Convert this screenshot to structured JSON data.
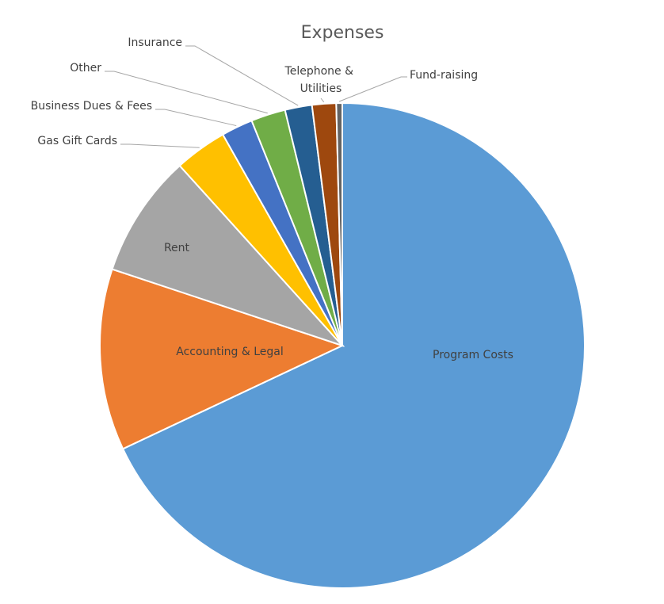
{
  "chart_data": {
    "type": "pie",
    "title": "Expenses",
    "categories": [
      "Program Costs",
      "Accounting & Legal",
      "Rent",
      "Gas Gift Cards",
      "Business Dues & Fees",
      "Other",
      "Insurance",
      "Telephone & Utilities",
      "Fund-raising"
    ],
    "values": [
      68.0,
      12.1,
      8.2,
      3.5,
      2.1,
      2.3,
      1.8,
      1.6,
      0.4
    ],
    "colors": [
      "#5b9bd5",
      "#ed7d31",
      "#a5a5a5",
      "#ffc000",
      "#4472c4",
      "#70ad47",
      "#255e91",
      "#9e480e",
      "#636363"
    ]
  }
}
